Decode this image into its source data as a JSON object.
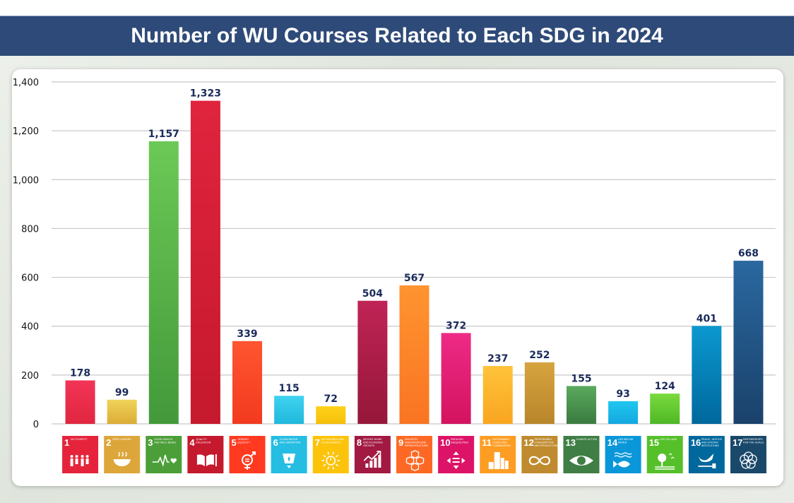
{
  "header": {
    "title": "Number of WU Courses Related to Each SDG in 2024"
  },
  "chart_data": {
    "type": "bar",
    "title": "Number of WU Courses Related to Each SDG in 2024",
    "xlabel": "",
    "ylabel": "",
    "ylim": [
      0,
      1400
    ],
    "yticks": [
      0,
      200,
      400,
      600,
      800,
      1000,
      1200,
      1400
    ],
    "ytick_labels": [
      "0",
      "200",
      "400",
      "600",
      "800",
      "1,000",
      "1,200",
      "1,400"
    ],
    "grid": true,
    "categories": [
      "1",
      "2",
      "3",
      "4",
      "5",
      "6",
      "7",
      "8",
      "9",
      "10",
      "11",
      "12",
      "13",
      "14",
      "15",
      "16",
      "17"
    ],
    "values": [
      178,
      99,
      1157,
      1323,
      339,
      115,
      72,
      504,
      567,
      372,
      237,
      252,
      155,
      93,
      124,
      401,
      668
    ],
    "value_labels": [
      "178",
      "99",
      "1,157",
      "1,323",
      "339",
      "115",
      "72",
      "504",
      "567",
      "372",
      "237",
      "252",
      "155",
      "93",
      "124",
      "401",
      "668"
    ],
    "sdg_goals": [
      {
        "num": "1",
        "name": "NO POVERTY",
        "icon": "family-icon",
        "color": "#e5243b"
      },
      {
        "num": "2",
        "name": "ZERO HUNGER",
        "icon": "bowl-icon",
        "color": "#dda63a"
      },
      {
        "num": "3",
        "name": "GOOD HEALTH AND WELL-BEING",
        "icon": "heartbeat-icon",
        "color": "#4c9f38"
      },
      {
        "num": "4",
        "name": "QUALITY EDUCATION",
        "icon": "book-icon",
        "color": "#c5192d"
      },
      {
        "num": "5",
        "name": "GENDER EQUALITY",
        "icon": "gender-icon",
        "color": "#ff3a21"
      },
      {
        "num": "6",
        "name": "CLEAN WATER AND SANITATION",
        "icon": "water-icon",
        "color": "#26bde2"
      },
      {
        "num": "7",
        "name": "AFFORDABLE AND CLEAN ENERGY",
        "icon": "sun-power-icon",
        "color": "#fcc30b"
      },
      {
        "num": "8",
        "name": "DECENT WORK AND ECONOMIC GROWTH",
        "icon": "growth-chart-icon",
        "color": "#a21942"
      },
      {
        "num": "9",
        "name": "INDUSTRY, INNOVATION AND INFRASTRUCTURE",
        "icon": "cubes-icon",
        "color": "#fd6925"
      },
      {
        "num": "10",
        "name": "REDUCED INEQUALITIES",
        "icon": "equal-arrows-icon",
        "color": "#dd1367"
      },
      {
        "num": "11",
        "name": "SUSTAINABLE CITIES AND COMMUNITIES",
        "icon": "city-icon",
        "color": "#fd9d24"
      },
      {
        "num": "12",
        "name": "RESPONSIBLE CONSUMPTION AND PRODUCTION",
        "icon": "infinity-icon",
        "color": "#bf8b2e"
      },
      {
        "num": "13",
        "name": "CLIMATE ACTION",
        "icon": "eye-globe-icon",
        "color": "#3f7e44"
      },
      {
        "num": "14",
        "name": "LIFE BELOW WATER",
        "icon": "fish-icon",
        "color": "#0a97d9"
      },
      {
        "num": "15",
        "name": "LIFE ON LAND",
        "icon": "tree-icon",
        "color": "#56c02b"
      },
      {
        "num": "16",
        "name": "PEACE, JUSTICE AND STRONG INSTITUTIONS",
        "icon": "dove-icon",
        "color": "#00689d"
      },
      {
        "num": "17",
        "name": "PARTNERSHIPS FOR THE GOALS",
        "icon": "rings-icon",
        "color": "#19486a"
      }
    ],
    "bar_colors": [
      [
        "#f23457",
        "#e0263f"
      ],
      [
        "#f0d35a",
        "#dcac35"
      ],
      [
        "#6cc956",
        "#43993a"
      ],
      [
        "#e0243e",
        "#c5192d"
      ],
      [
        "#ff5530",
        "#f23a1f"
      ],
      [
        "#40d2f0",
        "#1fb8dc"
      ],
      [
        "#ffd21a",
        "#f5be0a"
      ],
      [
        "#c02456",
        "#951739"
      ],
      [
        "#ff9430",
        "#f97422"
      ],
      [
        "#ee2a86",
        "#d3135f"
      ],
      [
        "#ffc33a",
        "#f9a520"
      ],
      [
        "#d6a43e",
        "#b8862a"
      ],
      [
        "#5aaa5e",
        "#3a7a40"
      ],
      [
        "#20c8ee",
        "#13a8e0"
      ],
      [
        "#7ada3e",
        "#4fb826"
      ],
      [
        "#0b98cf",
        "#00689d"
      ],
      [
        "#2a68a0",
        "#1a416a"
      ]
    ]
  }
}
